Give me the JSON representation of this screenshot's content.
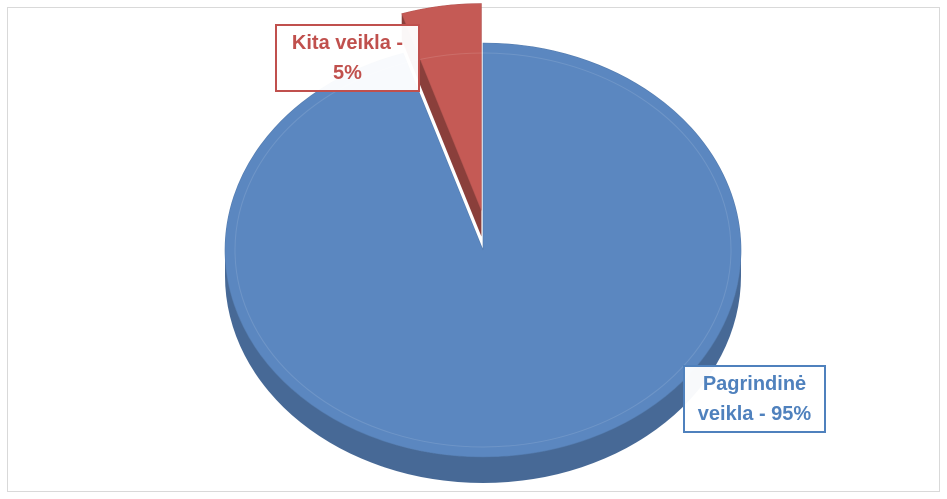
{
  "chart_data": {
    "type": "pie",
    "values": [
      95,
      5
    ],
    "value_labels": [
      "Pagrindinė veikla - 95%",
      "Kita veikla - 5%"
    ],
    "colors": [
      "#5b87c0",
      "#c55a55"
    ]
  }
}
